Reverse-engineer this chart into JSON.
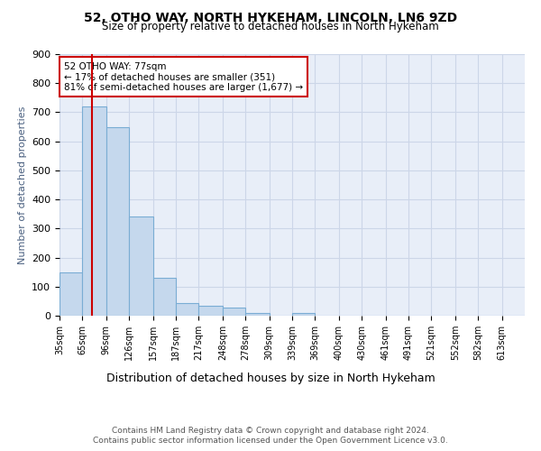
{
  "title1": "52, OTHO WAY, NORTH HYKEHAM, LINCOLN, LN6 9ZD",
  "title2": "Size of property relative to detached houses in North Hykeham",
  "dist_label": "Distribution of detached houses by size in North Hykeham",
  "ylabel": "Number of detached properties",
  "footer1": "Contains HM Land Registry data © Crown copyright and database right 2024.",
  "footer2": "Contains public sector information licensed under the Open Government Licence v3.0.",
  "annotation_line1": "52 OTHO WAY: 77sqm",
  "annotation_line2": "← 17% of detached houses are smaller (351)",
  "annotation_line3": "81% of semi-detached houses are larger (1,677) →",
  "property_size": 77,
  "bar_color": "#c5d8ed",
  "bar_edge_color": "#7aadd4",
  "vline_color": "#cc0000",
  "annotation_box_edge": "#cc0000",
  "bin_edges": [
    35,
    65,
    96,
    126,
    157,
    187,
    217,
    248,
    278,
    309,
    339,
    369,
    400,
    430,
    461,
    491,
    521,
    552,
    582,
    613,
    643
  ],
  "counts": [
    150,
    720,
    650,
    340,
    130,
    42,
    35,
    28,
    10,
    0,
    8,
    0,
    0,
    0,
    0,
    0,
    0,
    0,
    0,
    0
  ],
  "ylim": [
    0,
    900
  ],
  "yticks": [
    0,
    100,
    200,
    300,
    400,
    500,
    600,
    700,
    800,
    900
  ],
  "grid_color": "#ccd6e8",
  "bg_color": "#e8eef8"
}
